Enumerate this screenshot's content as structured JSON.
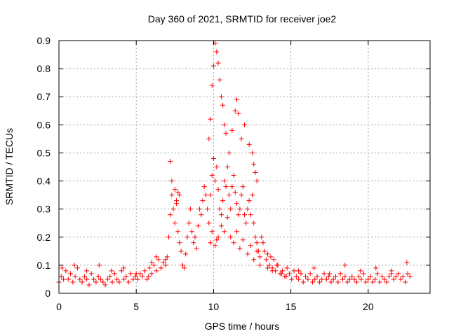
{
  "chart_data": {
    "type": "scatter",
    "title": "Day 360 of 2021, SRMTID for receiver joe2",
    "xlabel": "GPS time / hours",
    "ylabel": "SRMTID / TECUs",
    "xlim": [
      0,
      24
    ],
    "ylim": [
      0,
      0.9
    ],
    "xticks": [
      0,
      5,
      10,
      15,
      20
    ],
    "yticks": [
      0,
      0.1,
      0.2,
      0.3,
      0.4,
      0.5,
      0.6,
      0.7,
      0.8,
      0.9
    ],
    "xtick_labels": [
      "0",
      "5",
      "10",
      "15",
      "20"
    ],
    "ytick_labels": [
      "0",
      "0.1",
      "0.2",
      "0.3",
      "0.4",
      "0.5",
      "0.6",
      "0.7",
      "0.8",
      "0.9"
    ],
    "grid": true,
    "marker": "plus",
    "series": [
      {
        "name": "SRMTID",
        "color": "#ff0000",
        "x": [
          0.0,
          0.15,
          0.3,
          0.45,
          0.6,
          0.75,
          0.9,
          1.05,
          1.2,
          1.35,
          1.5,
          1.65,
          1.8,
          1.95,
          2.1,
          2.25,
          2.4,
          2.55,
          2.7,
          2.85,
          3.0,
          3.15,
          3.3,
          3.45,
          3.6,
          3.75,
          3.9,
          4.05,
          4.2,
          4.35,
          4.5,
          4.65,
          4.8,
          4.95,
          5.1,
          5.25,
          5.4,
          5.55,
          5.7,
          5.85,
          6.0,
          6.15,
          6.3,
          6.45,
          6.6,
          6.75,
          6.9,
          7.0,
          7.1,
          7.2,
          7.3,
          7.4,
          7.5,
          7.6,
          7.7,
          7.8,
          7.9,
          8.0,
          8.1,
          8.2,
          8.3,
          8.4,
          8.5,
          8.6,
          8.7,
          8.8,
          8.9,
          9.0,
          9.1,
          9.2,
          9.3,
          9.4,
          9.5,
          9.6,
          9.7,
          9.8,
          9.9,
          10.0,
          10.1,
          10.2,
          10.3,
          10.4,
          10.5,
          10.6,
          10.7,
          10.8,
          10.9,
          11.0,
          11.1,
          11.2,
          11.3,
          11.4,
          11.5,
          11.6,
          11.7,
          11.8,
          11.9,
          12.0,
          12.1,
          12.2,
          12.3,
          12.4,
          12.5,
          12.6,
          12.7,
          12.8,
          12.9,
          13.0,
          13.1,
          13.2,
          13.3,
          13.4,
          13.5,
          13.6,
          13.7,
          13.8,
          13.9,
          14.0,
          14.15,
          14.3,
          14.45,
          14.6,
          14.75,
          14.9,
          15.05,
          15.2,
          15.35,
          15.5,
          15.65,
          15.8,
          15.95,
          16.1,
          16.25,
          16.4,
          16.55,
          16.7,
          16.85,
          17.0,
          17.15,
          17.3,
          17.45,
          17.6,
          17.75,
          17.9,
          18.05,
          18.2,
          18.35,
          18.5,
          18.65,
          18.8,
          18.95,
          19.1,
          19.25,
          19.4,
          19.55,
          19.7,
          19.85,
          20.0,
          20.15,
          20.3,
          20.45,
          20.6,
          20.75,
          20.9,
          21.05,
          21.2,
          21.35,
          21.5,
          21.65,
          21.8,
          21.95,
          22.1,
          22.25,
          22.4,
          22.55,
          22.7,
          7.2,
          7.3,
          7.5,
          7.6,
          7.7,
          7.8,
          9.7,
          9.8,
          9.9,
          10.0,
          10.1,
          10.2,
          10.3,
          10.4,
          10.5,
          10.6,
          10.7,
          10.8,
          11.0,
          11.2,
          11.4,
          11.5,
          11.6,
          11.8,
          12.0,
          12.3,
          12.5,
          12.6,
          12.7,
          12.8,
          9.8,
          9.9,
          10.1,
          10.2,
          10.3,
          10.5,
          10.7,
          10.9,
          11.1,
          11.3,
          11.5,
          11.7,
          11.9,
          12.2,
          12.4,
          12.6,
          12.8,
          13.0,
          6.0,
          6.3,
          6.6,
          6.9,
          13.5,
          13.8,
          14.1,
          14.4,
          14.7,
          0.2,
          1.0,
          1.8,
          2.6,
          3.4,
          4.2,
          5.0,
          5.8,
          15.5,
          16.5,
          17.5,
          18.5,
          19.5,
          20.5,
          21.5,
          22.5
        ],
        "y": [
          0.04,
          0.06,
          0.05,
          0.08,
          0.05,
          0.07,
          0.04,
          0.06,
          0.09,
          0.05,
          0.04,
          0.06,
          0.05,
          0.03,
          0.07,
          0.05,
          0.04,
          0.06,
          0.05,
          0.04,
          0.03,
          0.05,
          0.06,
          0.04,
          0.07,
          0.05,
          0.04,
          0.08,
          0.05,
          0.06,
          0.04,
          0.07,
          0.05,
          0.06,
          0.05,
          0.07,
          0.06,
          0.08,
          0.05,
          0.09,
          0.07,
          0.1,
          0.08,
          0.12,
          0.09,
          0.11,
          0.1,
          0.13,
          0.2,
          0.28,
          0.35,
          0.3,
          0.25,
          0.33,
          0.22,
          0.18,
          0.15,
          0.1,
          0.09,
          0.14,
          0.2,
          0.25,
          0.3,
          0.22,
          0.18,
          0.2,
          0.16,
          0.24,
          0.3,
          0.28,
          0.33,
          0.38,
          0.35,
          0.3,
          0.25,
          0.35,
          0.42,
          0.48,
          0.4,
          0.45,
          0.37,
          0.3,
          0.28,
          0.33,
          0.4,
          0.38,
          0.45,
          0.35,
          0.3,
          0.38,
          0.42,
          0.36,
          0.32,
          0.28,
          0.3,
          0.35,
          0.38,
          0.28,
          0.25,
          0.3,
          0.33,
          0.28,
          0.35,
          0.25,
          0.2,
          0.18,
          0.15,
          0.13,
          0.2,
          0.18,
          0.15,
          0.12,
          0.14,
          0.1,
          0.13,
          0.09,
          0.12,
          0.08,
          0.1,
          0.07,
          0.08,
          0.06,
          0.09,
          0.07,
          0.05,
          0.08,
          0.06,
          0.05,
          0.07,
          0.04,
          0.06,
          0.05,
          0.07,
          0.04,
          0.05,
          0.06,
          0.04,
          0.05,
          0.07,
          0.05,
          0.06,
          0.04,
          0.05,
          0.06,
          0.04,
          0.07,
          0.05,
          0.06,
          0.04,
          0.05,
          0.06,
          0.05,
          0.04,
          0.06,
          0.05,
          0.07,
          0.04,
          0.05,
          0.06,
          0.04,
          0.05,
          0.07,
          0.04,
          0.06,
          0.05,
          0.04,
          0.06,
          0.08,
          0.05,
          0.06,
          0.07,
          0.05,
          0.06,
          0.04,
          0.07,
          0.06,
          0.47,
          0.4,
          0.37,
          0.32,
          0.36,
          0.35,
          0.55,
          0.62,
          0.74,
          0.81,
          0.89,
          0.86,
          0.82,
          0.76,
          0.7,
          0.67,
          0.6,
          0.57,
          0.5,
          0.58,
          0.65,
          0.69,
          0.64,
          0.55,
          0.6,
          0.53,
          0.5,
          0.46,
          0.43,
          0.4,
          0.18,
          0.22,
          0.17,
          0.19,
          0.2,
          0.24,
          0.22,
          0.27,
          0.2,
          0.18,
          0.22,
          0.16,
          0.19,
          0.14,
          0.17,
          0.12,
          0.15,
          0.1,
          0.11,
          0.13,
          0.09,
          0.12,
          0.09,
          0.08,
          0.1,
          0.07,
          0.06,
          0.09,
          0.1,
          0.08,
          0.1,
          0.08,
          0.09,
          0.07,
          0.06,
          0.08,
          0.09,
          0.07,
          0.1,
          0.08,
          0.09,
          0.07,
          0.11
        ]
      }
    ]
  }
}
